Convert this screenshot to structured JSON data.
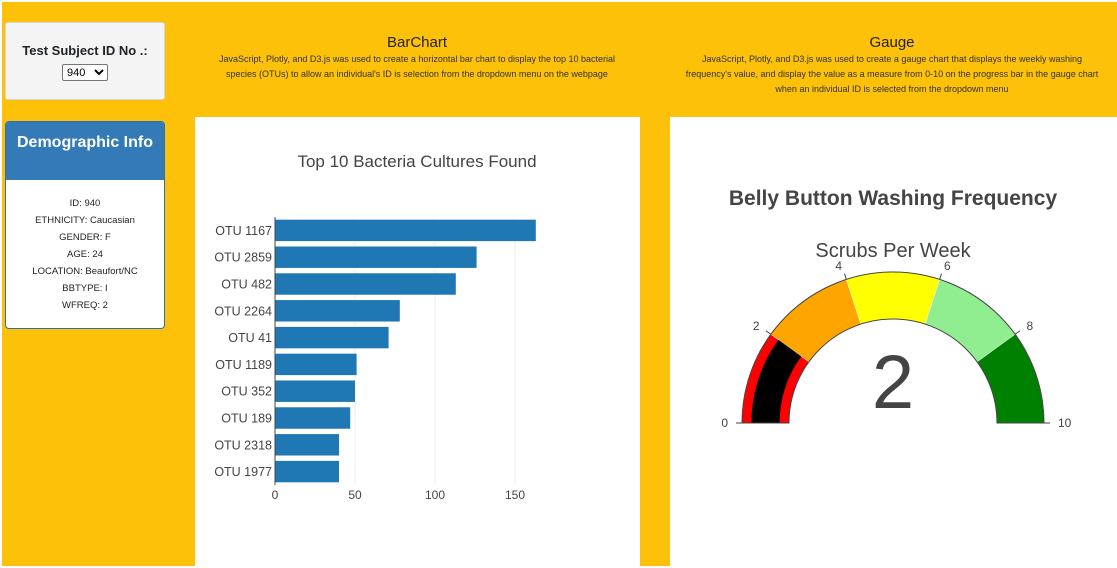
{
  "selector": {
    "label": "Test Subject ID No .:",
    "selected": "940"
  },
  "demographic": {
    "title": "Demographic Info",
    "items": [
      "ID: 940",
      "ETHNICITY: Caucasian",
      "GENDER: F",
      "AGE: 24",
      "LOCATION: Beaufort/NC",
      "BBTYPE: I",
      "WFREQ: 2"
    ]
  },
  "bar_header": {
    "title": "BarChart",
    "description": "JavaScript, Plotly, and D3.js was used to create a horizontal bar chart to display the top 10 bacterial species (OTUs) to allow an individual's ID is selection from the dropdown menu on the webpage"
  },
  "gauge_header": {
    "title": "Gauge",
    "description": "JavaScript, Plotly, and D3.js was used to create a gauge chart that displays the weekly washing frequency's value, and display the value as a measure from 0-10 on the progress bar in the gauge chart when an individual ID is selected from the dropdown menu"
  },
  "colors": {
    "background": "#fdc10a",
    "bar": "#1f77b4",
    "panel_header": "#337ab7"
  },
  "chart_data": [
    {
      "type": "bar",
      "orientation": "horizontal",
      "title": "Top 10 Bacteria Cultures Found",
      "categories": [
        "OTU 1167",
        "OTU 2859",
        "OTU 482",
        "OTU 2264",
        "OTU 41",
        "OTU 1189",
        "OTU 352",
        "OTU 189",
        "OTU 2318",
        "OTU 1977"
      ],
      "values": [
        163,
        126,
        113,
        78,
        71,
        51,
        50,
        47,
        40,
        40
      ],
      "xlim": [
        0,
        170
      ],
      "xticks": [
        0,
        50,
        100,
        150
      ],
      "grid": true
    },
    {
      "type": "gauge",
      "title": "Belly Button Washing Frequency",
      "subtitle": "Scrubs Per Week",
      "value": 2,
      "range": [
        0,
        10
      ],
      "ticks": [
        0,
        2,
        4,
        6,
        8,
        10
      ],
      "bands": [
        {
          "from": 0,
          "to": 2,
          "color": "#ff0000"
        },
        {
          "from": 2,
          "to": 4,
          "color": "#ffa500"
        },
        {
          "from": 4,
          "to": 6,
          "color": "#ffff00"
        },
        {
          "from": 6,
          "to": 8,
          "color": "#90ee90"
        },
        {
          "from": 8,
          "to": 10,
          "color": "#008000"
        }
      ],
      "bar_color": "#000000"
    }
  ]
}
